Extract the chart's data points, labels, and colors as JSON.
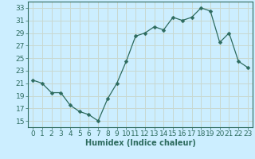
{
  "x": [
    0,
    1,
    2,
    3,
    4,
    5,
    6,
    7,
    8,
    9,
    10,
    11,
    12,
    13,
    14,
    15,
    16,
    17,
    18,
    19,
    20,
    21,
    22,
    23
  ],
  "y": [
    21.5,
    21.0,
    19.5,
    19.5,
    17.5,
    16.5,
    16.0,
    15.0,
    18.5,
    21.0,
    24.5,
    28.5,
    29.0,
    30.0,
    29.5,
    31.5,
    31.0,
    31.5,
    33.0,
    32.5,
    27.5,
    29.0,
    24.5,
    23.5
  ],
  "line_color": "#2d6b5e",
  "marker": "D",
  "marker_size": 2.5,
  "bg_color": "#cceeff",
  "grid_color": "#c8d8d0",
  "xlabel": "Humidex (Indice chaleur)",
  "xlim": [
    -0.5,
    23.5
  ],
  "ylim": [
    14,
    34
  ],
  "yticks": [
    15,
    17,
    19,
    21,
    23,
    25,
    27,
    29,
    31,
    33
  ],
  "xticks": [
    0,
    1,
    2,
    3,
    4,
    5,
    6,
    7,
    8,
    9,
    10,
    11,
    12,
    13,
    14,
    15,
    16,
    17,
    18,
    19,
    20,
    21,
    22,
    23
  ],
  "label_fontsize": 7,
  "tick_fontsize": 6.5
}
